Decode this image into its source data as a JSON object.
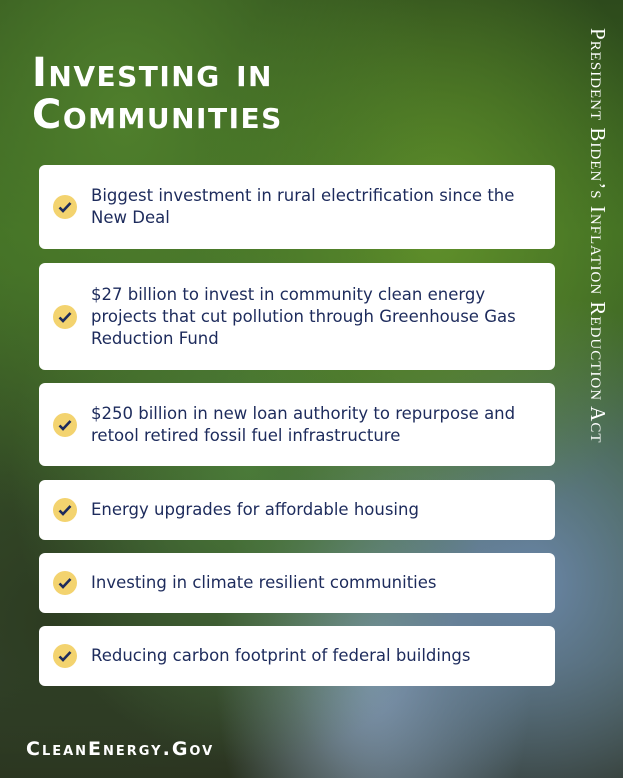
{
  "title_line1": "Investing in",
  "title_line2": "Communities",
  "side_title": "President Biden’s Inflation Reduction Act",
  "items": [
    {
      "text": "Biggest investment in rural electrification since the New Deal",
      "icon": "check-icon"
    },
    {
      "text": "$27 billion to invest in community clean energy projects that cut pollution through Greenhouse Gas Reduction Fund",
      "icon": "check-icon"
    },
    {
      "text": "$250 billion in new loan authority to repurpose and retool retired fossil fuel infrastructure",
      "icon": "check-icon"
    },
    {
      "text": "Energy upgrades for affordable housing",
      "icon": "check-icon"
    },
    {
      "text": "Investing in climate resilient communities",
      "icon": "check-icon"
    },
    {
      "text": "Reducing carbon footprint of federal buildings",
      "icon": "check-icon"
    }
  ],
  "footer": "CleanEnergy.Gov",
  "colors": {
    "text": "#1d2b5c",
    "check_bg": "#f3d36f",
    "card": "#ffffff"
  }
}
